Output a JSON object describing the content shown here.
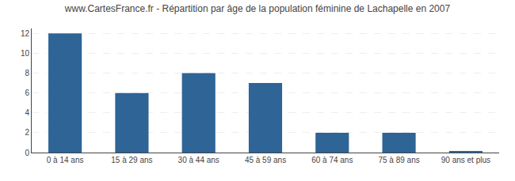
{
  "chart_data": {
    "type": "bar",
    "title": "www.CartesFrance.fr - Répartition par âge de la population féminine de Lachapelle en 2007",
    "categories": [
      "0 à 14 ans",
      "15 à 29 ans",
      "30 à 44 ans",
      "45 à 59 ans",
      "60 à 74 ans",
      "75 à 89 ans",
      "90 ans et plus"
    ],
    "values": [
      12,
      6,
      8,
      7,
      2,
      2,
      0.12
    ],
    "color": "#2e6496",
    "ylim": [
      0,
      12.5
    ],
    "yticks": [
      0,
      2,
      4,
      6,
      8,
      10,
      12
    ],
    "grid": true
  }
}
